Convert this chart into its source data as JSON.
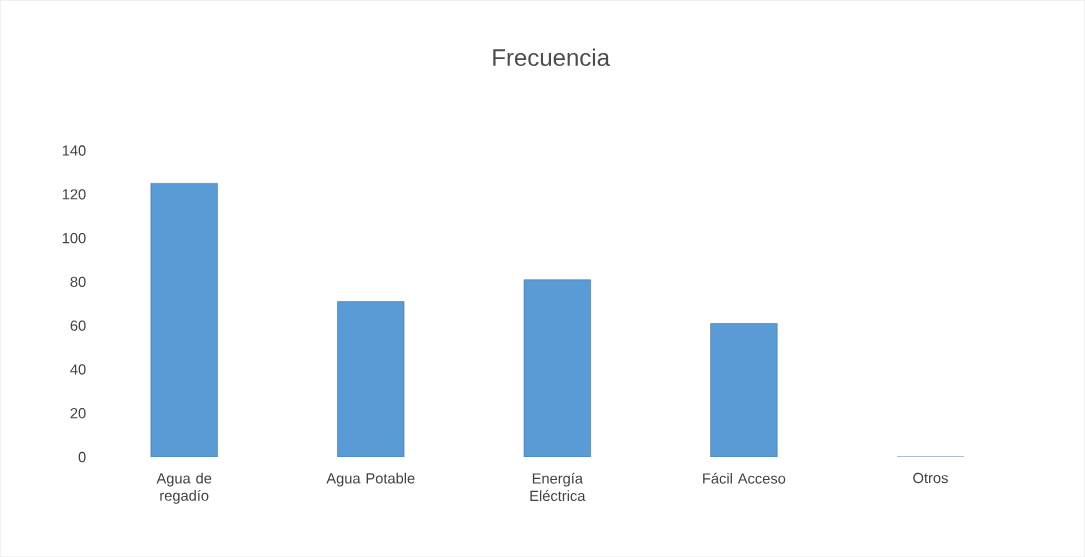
{
  "chart_data": {
    "type": "bar",
    "title": "Frecuencia",
    "categories": [
      "Agua de regadío",
      "Agua Potable",
      "Energía Eléctrica",
      "Fácil Acceso",
      "Otros"
    ],
    "values": [
      125,
      71,
      81,
      61,
      0
    ],
    "color": "#5b9bd5",
    "ylim": [
      0,
      140
    ],
    "yticks": [
      0,
      20,
      40,
      60,
      80,
      100,
      120,
      140
    ]
  }
}
